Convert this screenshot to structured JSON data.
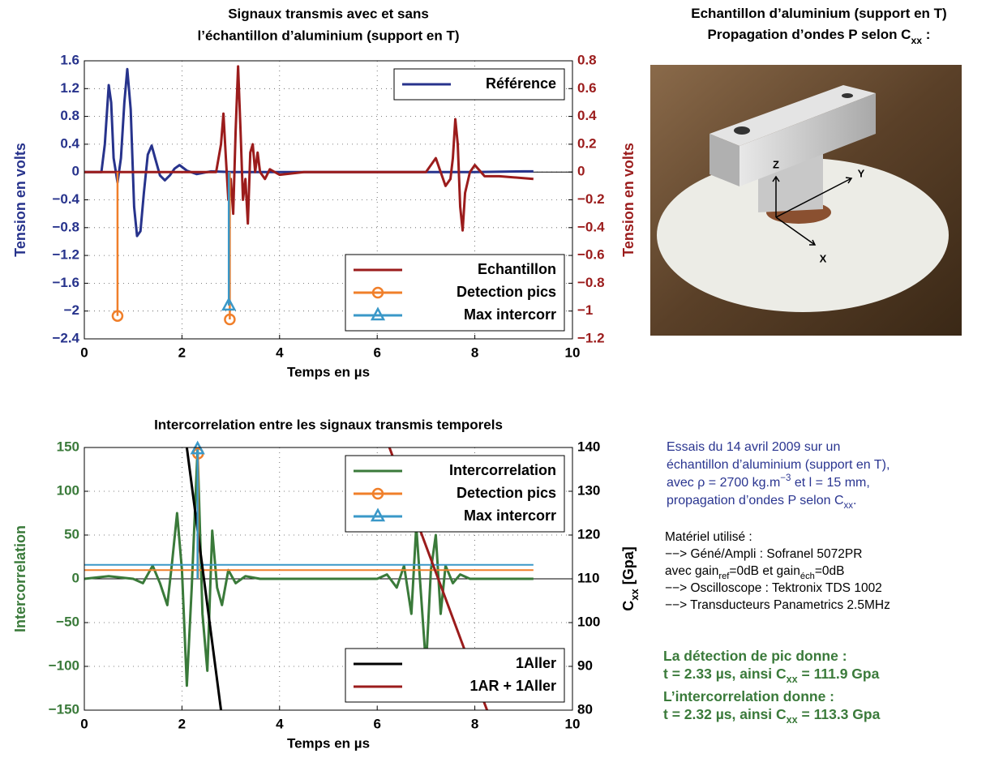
{
  "chart_data": [
    {
      "type": "line",
      "title": [
        "Signaux transmis avec et sans",
        "l’échantillon d’aluminium (support en T)"
      ],
      "xlabel": "Temps en µs",
      "ylabel": "Tension en volts",
      "y2label": [
        "Tension en volts"
      ],
      "ycolor": "#27338c",
      "y2color": "#9b1c1c",
      "xlim": [
        0,
        10
      ],
      "xticks": [
        0,
        2,
        4,
        6,
        8,
        10
      ],
      "ylim": [
        -2.4,
        1.6
      ],
      "yticks": [
        {
          "value": -2.4,
          "label": "−2.4"
        },
        {
          "value": -2,
          "label": "−2"
        },
        {
          "value": -1.6,
          "label": "−1.6"
        },
        {
          "value": -1.2,
          "label": "−1.2"
        },
        {
          "value": -0.8,
          "label": "−0.8"
        },
        {
          "value": -0.4,
          "label": "−0.4"
        },
        0,
        0.4,
        0.8,
        1.2,
        1.6
      ],
      "y2lim": [
        -1.2,
        0.8
      ],
      "y2ticks": [
        {
          "value": -1.2,
          "label": "−1.2"
        },
        {
          "value": -1,
          "label": "−1"
        },
        {
          "value": -0.8,
          "label": "−0.8"
        },
        {
          "value": -0.6,
          "label": "−0.6"
        },
        {
          "value": -0.4,
          "label": "−0.4"
        },
        {
          "value": -0.2,
          "label": "−0.2"
        },
        0,
        0.2,
        0.4,
        0.6,
        0.8
      ],
      "grid": true,
      "series": [
        {
          "name": "Référence",
          "color": "#27338c",
          "style": "line",
          "legend": "upper right",
          "x": [
            0,
            0.35,
            0.42,
            0.5,
            0.55,
            0.6,
            0.68,
            0.75,
            0.82,
            0.88,
            0.95,
            1.02,
            1.08,
            1.15,
            1.22,
            1.3,
            1.38,
            1.45,
            1.55,
            1.65,
            1.75,
            1.85,
            1.95,
            2.1,
            2.3,
            2.6,
            3,
            4,
            5,
            6,
            7,
            8,
            9,
            9.2
          ],
          "values": [
            0,
            0,
            0.4,
            1.25,
            1.0,
            0.2,
            -0.15,
            0.2,
            1.0,
            1.48,
            0.9,
            -0.5,
            -0.92,
            -0.85,
            -0.3,
            0.25,
            0.38,
            0.2,
            -0.05,
            -0.12,
            -0.05,
            0.05,
            0.1,
            0.02,
            -0.03,
            0.01,
            0,
            0,
            0,
            0,
            0,
            0,
            0.01,
            0.01
          ]
        },
        {
          "name": "Echantillon",
          "color": "#9b1c1c",
          "style": "line",
          "axis": "y2",
          "legend": "lower right",
          "x": [
            0,
            2.7,
            2.8,
            2.85,
            2.9,
            2.95,
            3.0,
            3.05,
            3.1,
            3.15,
            3.2,
            3.25,
            3.3,
            3.35,
            3.4,
            3.45,
            3.5,
            3.55,
            3.6,
            3.7,
            3.8,
            4.0,
            4.5,
            5,
            6,
            7,
            7.2,
            7.3,
            7.4,
            7.5,
            7.55,
            7.6,
            7.65,
            7.7,
            7.75,
            7.8,
            7.9,
            8,
            8.2,
            8.5,
            9.2
          ],
          "values": [
            0,
            0,
            0.2,
            0.42,
            0.1,
            -0.2,
            -0.05,
            -0.3,
            0.3,
            0.76,
            0.3,
            -0.2,
            -0.05,
            -0.37,
            0.14,
            0.2,
            0,
            0.14,
            0,
            -0.05,
            0.02,
            -0.02,
            0,
            0,
            0,
            0,
            0.1,
            0,
            -0.1,
            -0.05,
            0.1,
            0.38,
            0.2,
            -0.25,
            -0.42,
            -0.15,
            0,
            0.05,
            -0.03,
            -0.03,
            -0.05
          ]
        },
        {
          "name": "Detection pics",
          "color": "#f07f2a",
          "style": "stem",
          "marker": "circle",
          "legend": "lower right",
          "x": [
            0.68,
            2.98
          ],
          "values": [
            -2.07,
            -2.12
          ]
        },
        {
          "name": "Max intercorr",
          "color": "#3a98c8",
          "style": "stem",
          "marker": "triangle",
          "legend": "lower right",
          "x": [
            2.96
          ],
          "values": [
            -1.92
          ]
        }
      ]
    },
    {
      "type": "line",
      "title": [
        "Intercorrelation entre les signaux transmis temporels"
      ],
      "xlabel": "Temps en µs",
      "ylabel": "Intercorrelation",
      "y2label": [
        "C",
        {
          "sub": "xx"
        },
        " [Gpa]"
      ],
      "ycolor": "#3a7a3a",
      "y2color": "#000000",
      "xlim": [
        0,
        10
      ],
      "xticks": [
        0,
        2,
        4,
        6,
        8,
        10
      ],
      "ylim": [
        -150,
        150
      ],
      "yticks": [
        {
          "value": -150,
          "label": "−150"
        },
        {
          "value": -100,
          "label": "−100"
        },
        {
          "value": -50,
          "label": "−50"
        },
        0,
        50,
        100,
        150
      ],
      "y2lim": [
        80,
        140
      ],
      "y2ticks": [
        80,
        90,
        100,
        110,
        120,
        130,
        140
      ],
      "grid": true,
      "series": [
        {
          "name": "Intercorrelation",
          "color": "#3a7a3a",
          "style": "line",
          "legend": "upper right",
          "x": [
            0,
            0.5,
            1.0,
            1.2,
            1.4,
            1.55,
            1.7,
            1.8,
            1.9,
            2.0,
            2.1,
            2.2,
            2.32,
            2.42,
            2.52,
            2.62,
            2.72,
            2.82,
            2.95,
            3.1,
            3.3,
            3.6,
            4,
            5,
            6,
            6.2,
            6.4,
            6.55,
            6.7,
            6.8,
            6.9,
            7.0,
            7.1,
            7.2,
            7.3,
            7.4,
            7.55,
            7.7,
            7.9,
            8.2,
            9.2
          ],
          "values": [
            0,
            3,
            0,
            -5,
            15,
            -5,
            -30,
            20,
            75,
            10,
            -122,
            -10,
            148,
            -40,
            -105,
            55,
            -10,
            -30,
            10,
            -5,
            3,
            0,
            0,
            0,
            0,
            5,
            -10,
            15,
            -40,
            60,
            -20,
            -100,
            10,
            50,
            -40,
            15,
            -5,
            5,
            0,
            0,
            0
          ]
        },
        {
          "name": "Detection pics",
          "color": "#f07f2a",
          "style": "stem",
          "marker": "circle",
          "legend": "upper right",
          "threshold": 10,
          "x": [
            2.33
          ],
          "values": [
            143
          ]
        },
        {
          "name": "Max intercorr",
          "color": "#3a98c8",
          "style": "stem",
          "marker": "triangle",
          "legend": "upper right",
          "threshold": 16,
          "x": [
            2.32
          ],
          "values": [
            148
          ]
        },
        {
          "name": "1Aller",
          "color": "#000000",
          "style": "line",
          "axis": "y2",
          "legend": "lower right",
          "x": [
            2.1,
            2.8
          ],
          "values": [
            140,
            80
          ]
        },
        {
          "name": "1AR + 1Aller",
          "color": "#9b1c1c",
          "style": "line",
          "axis": "y2",
          "legend": "lower right",
          "x": [
            6.25,
            8.25
          ],
          "values": [
            140,
            80
          ]
        }
      ]
    }
  ],
  "photo": {
    "title": [
      [
        "Echantillon d’aluminium (support en T)"
      ],
      [
        "Propagation d’ondes P selon C",
        {
          "sub": "xx"
        },
        " :"
      ]
    ],
    "axes": [
      "Z",
      "Y",
      "X"
    ]
  },
  "notes": {
    "description": [
      [
        "Essais du 14 avril 2009 sur un"
      ],
      [
        "échantillon d’aluminium (support en T),"
      ],
      [
        "avec ρ = 2700 kg.m",
        {
          "sup": "−3"
        },
        " et l = 15 mm,"
      ],
      [
        "propagation d’ondes P selon C",
        {
          "sub": "xx"
        },
        "."
      ]
    ],
    "equipment": [
      [
        "Matériel utilisé :"
      ],
      [
        "  −−> Géné/Ampli : Sofranel 5072PR"
      ],
      [
        "        avec gain",
        {
          "sub": "ref"
        },
        "=0dB et gain",
        {
          "sub": "éch"
        },
        "=0dB"
      ],
      [
        "  −−> Oscilloscope : Tektronix TDS 1002"
      ],
      [
        "  −−> Transducteurs Panametrics 2.5MHz"
      ]
    ],
    "results": [
      [
        "La détection de pic donne :"
      ],
      [
        "t = 2.33 µs, ainsi C",
        {
          "sub": "xx"
        },
        " = 111.9 Gpa"
      ],
      [
        "L’intercorrelation donne :"
      ],
      [
        "t = 2.32 µs, ainsi C",
        {
          "sub": "xx"
        },
        " = 113.3 Gpa"
      ]
    ]
  }
}
